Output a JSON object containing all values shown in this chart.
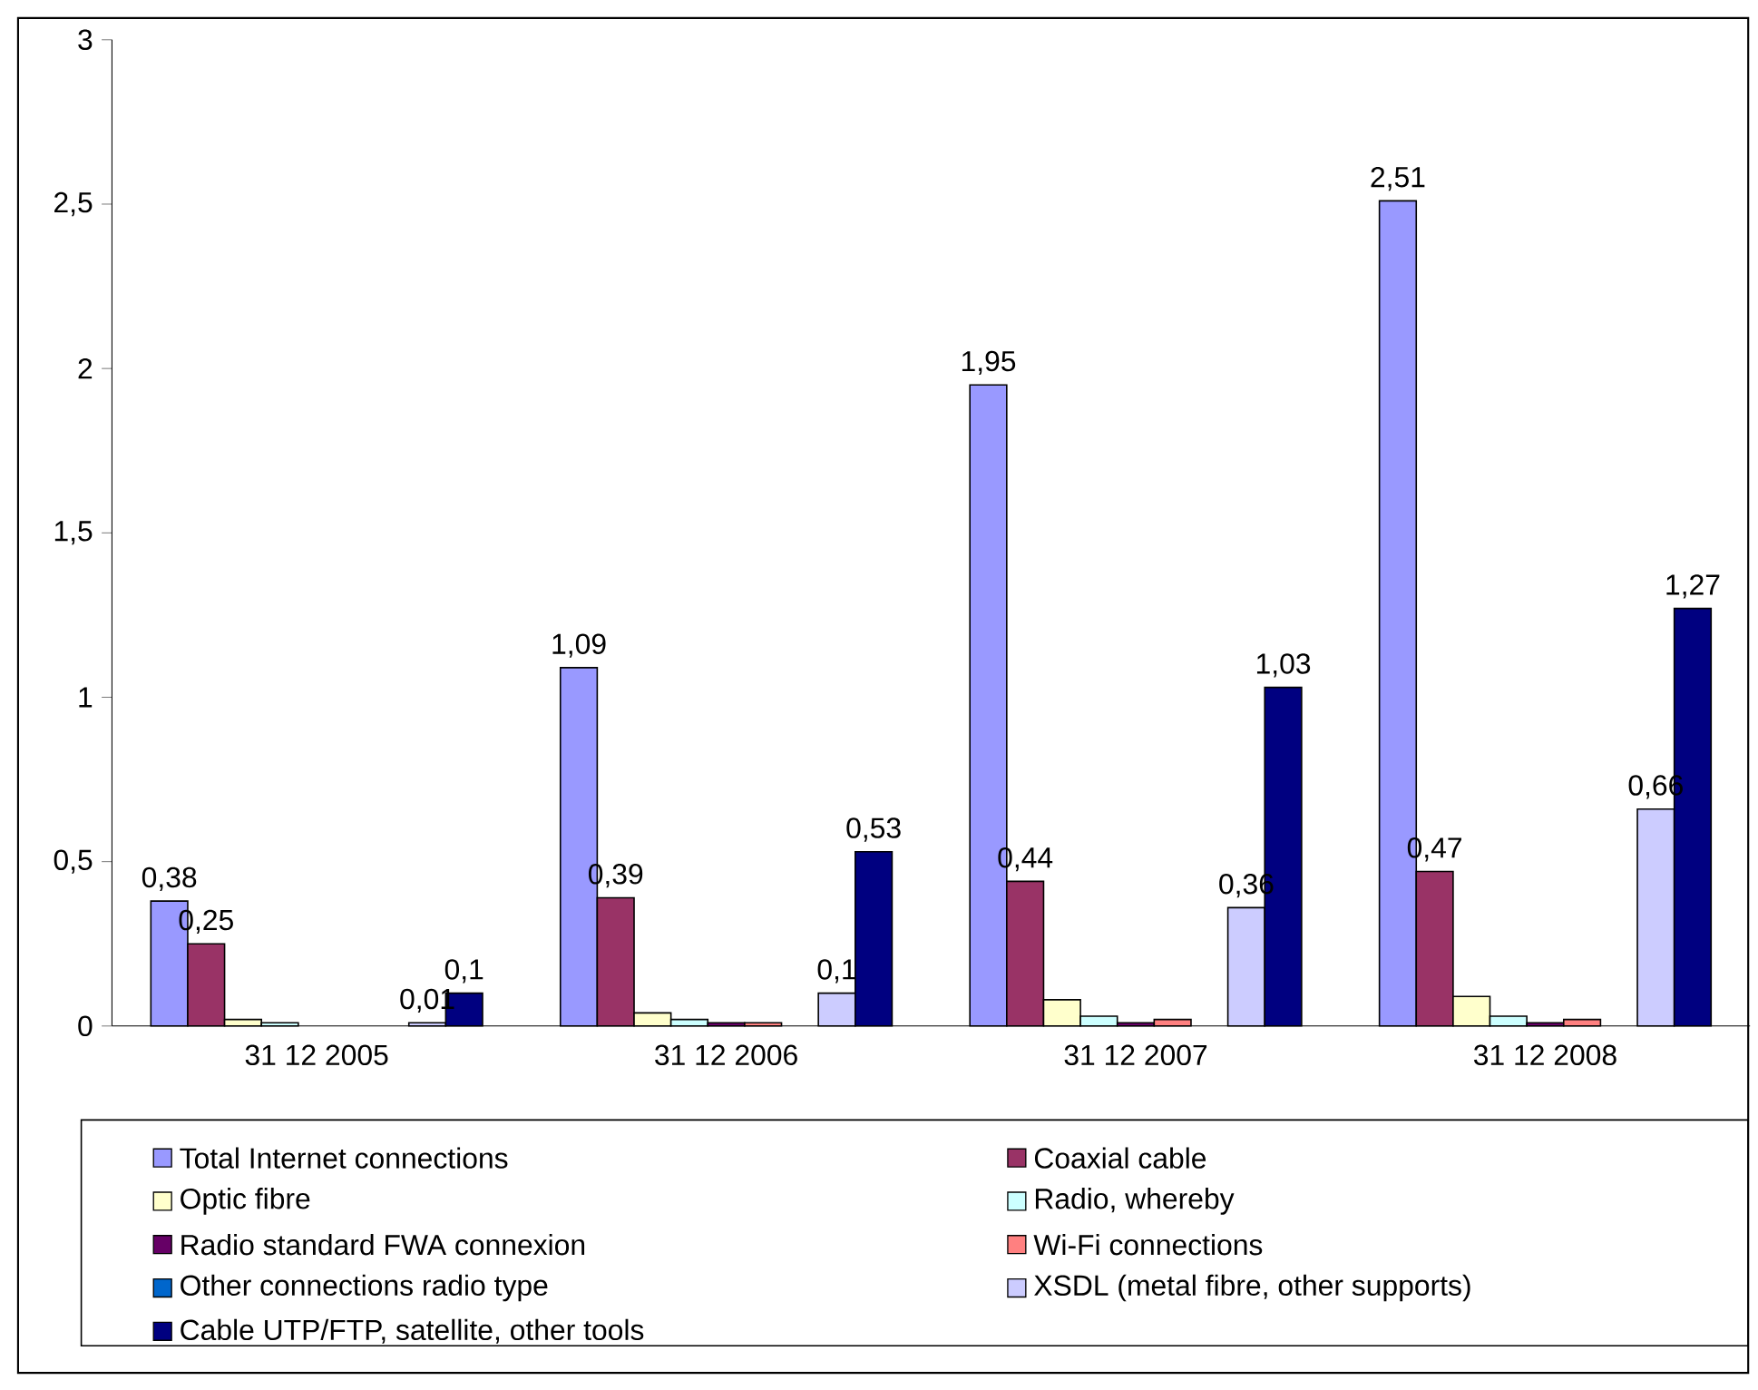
{
  "chart_data": {
    "type": "bar",
    "categories": [
      "31 12 2005",
      "31 12 2006",
      "31 12 2007",
      "31 12 2008"
    ],
    "ylim": [
      0,
      3
    ],
    "yticks": [
      0,
      {
        "value": 0.5,
        "label": "0,5"
      },
      1,
      {
        "value": 1.5,
        "label": "1,5"
      },
      2,
      {
        "value": 2.5,
        "label": "2,5"
      },
      3
    ],
    "legend": "bottom",
    "grid": false,
    "series": [
      {
        "name": "Total Internet connections",
        "color": "#9999ff",
        "values": [
          0.38,
          1.09,
          1.95,
          2.51
        ],
        "value_labels": [
          "0,38",
          "1,09",
          "1,95",
          "2,51"
        ]
      },
      {
        "name": "Coaxial cable",
        "color": "#993366",
        "values": [
          0.25,
          0.39,
          0.44,
          0.47
        ],
        "value_labels": [
          "0,25",
          "0,39",
          "0,44",
          "0,47"
        ]
      },
      {
        "name": "Optic fibre",
        "color": "#ffffcc",
        "values": [
          0.02,
          0.04,
          0.08,
          0.09
        ]
      },
      {
        "name": "Radio, whereby",
        "color": "#ccffff",
        "values": [
          0.01,
          0.02,
          0.03,
          0.03
        ]
      },
      {
        "name": "Radio standard FWA connexion",
        "color": "#660066",
        "values": [
          null,
          0.01,
          0.01,
          0.01
        ]
      },
      {
        "name": "Wi-Fi connections",
        "color": "#ff8080",
        "values": [
          null,
          0.01,
          0.02,
          0.02
        ]
      },
      {
        "name": "Other connections radio type",
        "color": "#0066cc",
        "values": [
          null,
          null,
          null,
          null
        ]
      },
      {
        "name": "XSDL (metal fibre, other supports)",
        "color": "#ccccff",
        "values": [
          0.01,
          0.1,
          0.36,
          0.66
        ],
        "value_labels": [
          "0,01",
          "0,1",
          "0,36",
          "0,66"
        ]
      },
      {
        "name": "Cable UTP/FTP, satellite, other tools",
        "color": "#000080",
        "values": [
          0.1,
          0.53,
          1.03,
          1.27
        ],
        "value_labels": [
          "0,1",
          "0,53",
          "1,03",
          "1,27"
        ]
      }
    ]
  }
}
